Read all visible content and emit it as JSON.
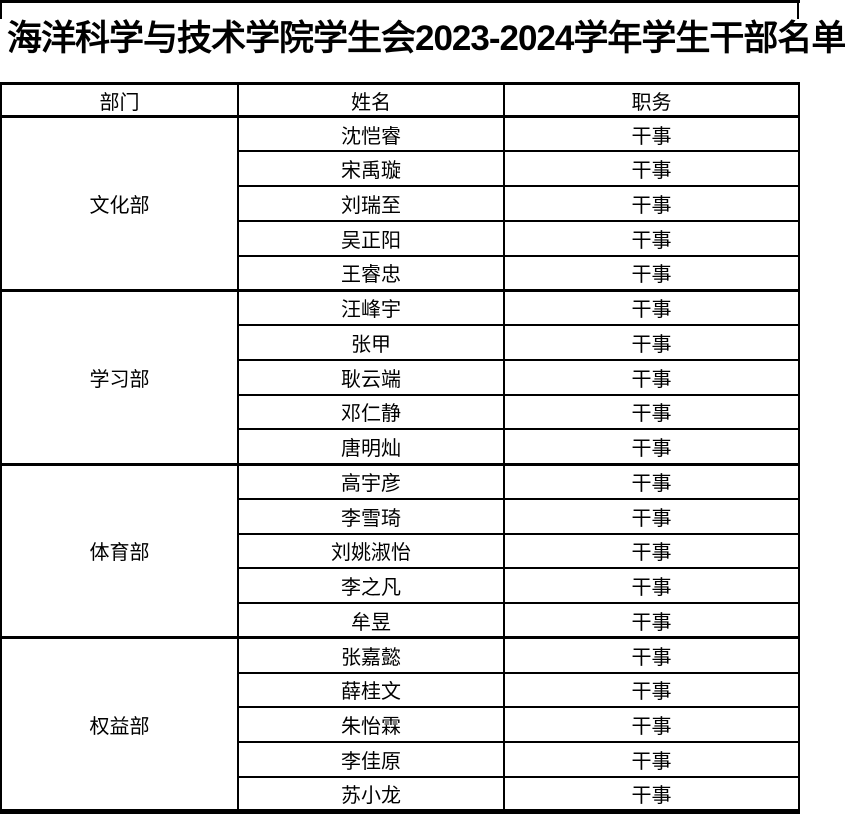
{
  "page": {
    "background": "#ffffff",
    "border_color": "#000000"
  },
  "title": "海洋科学与技术学院学生会2023-2024学年学生干部名单",
  "table": {
    "headers": [
      "部门",
      "姓名",
      "职务"
    ],
    "groups": [
      {
        "department": "文化部",
        "members": [
          {
            "name": "沈恺睿",
            "position": "干事"
          },
          {
            "name": "宋禹璇",
            "position": "干事"
          },
          {
            "name": "刘瑞至",
            "position": "干事"
          },
          {
            "name": "吴正阳",
            "position": "干事"
          },
          {
            "name": "王睿忠",
            "position": "干事"
          }
        ]
      },
      {
        "department": "学习部",
        "members": [
          {
            "name": "汪峰宇",
            "position": "干事"
          },
          {
            "name": "张甲",
            "position": "干事"
          },
          {
            "name": "耿云端",
            "position": "干事"
          },
          {
            "name": "邓仁静",
            "position": "干事"
          },
          {
            "name": "唐明灿",
            "position": "干事"
          }
        ]
      },
      {
        "department": "体育部",
        "members": [
          {
            "name": "高宇彦",
            "position": "干事"
          },
          {
            "name": "李雪琦",
            "position": "干事"
          },
          {
            "name": "刘姚淑怡",
            "position": "干事"
          },
          {
            "name": "李之凡",
            "position": "干事"
          },
          {
            "name": "牟昱",
            "position": "干事"
          }
        ]
      },
      {
        "department": "权益部",
        "members": [
          {
            "name": "张嘉懿",
            "position": "干事"
          },
          {
            "name": "薛桂文",
            "position": "干事"
          },
          {
            "name": "朱怡霖",
            "position": "干事"
          },
          {
            "name": "李佳原",
            "position": "干事"
          },
          {
            "name": "苏小龙",
            "position": "干事"
          }
        ]
      }
    ]
  }
}
